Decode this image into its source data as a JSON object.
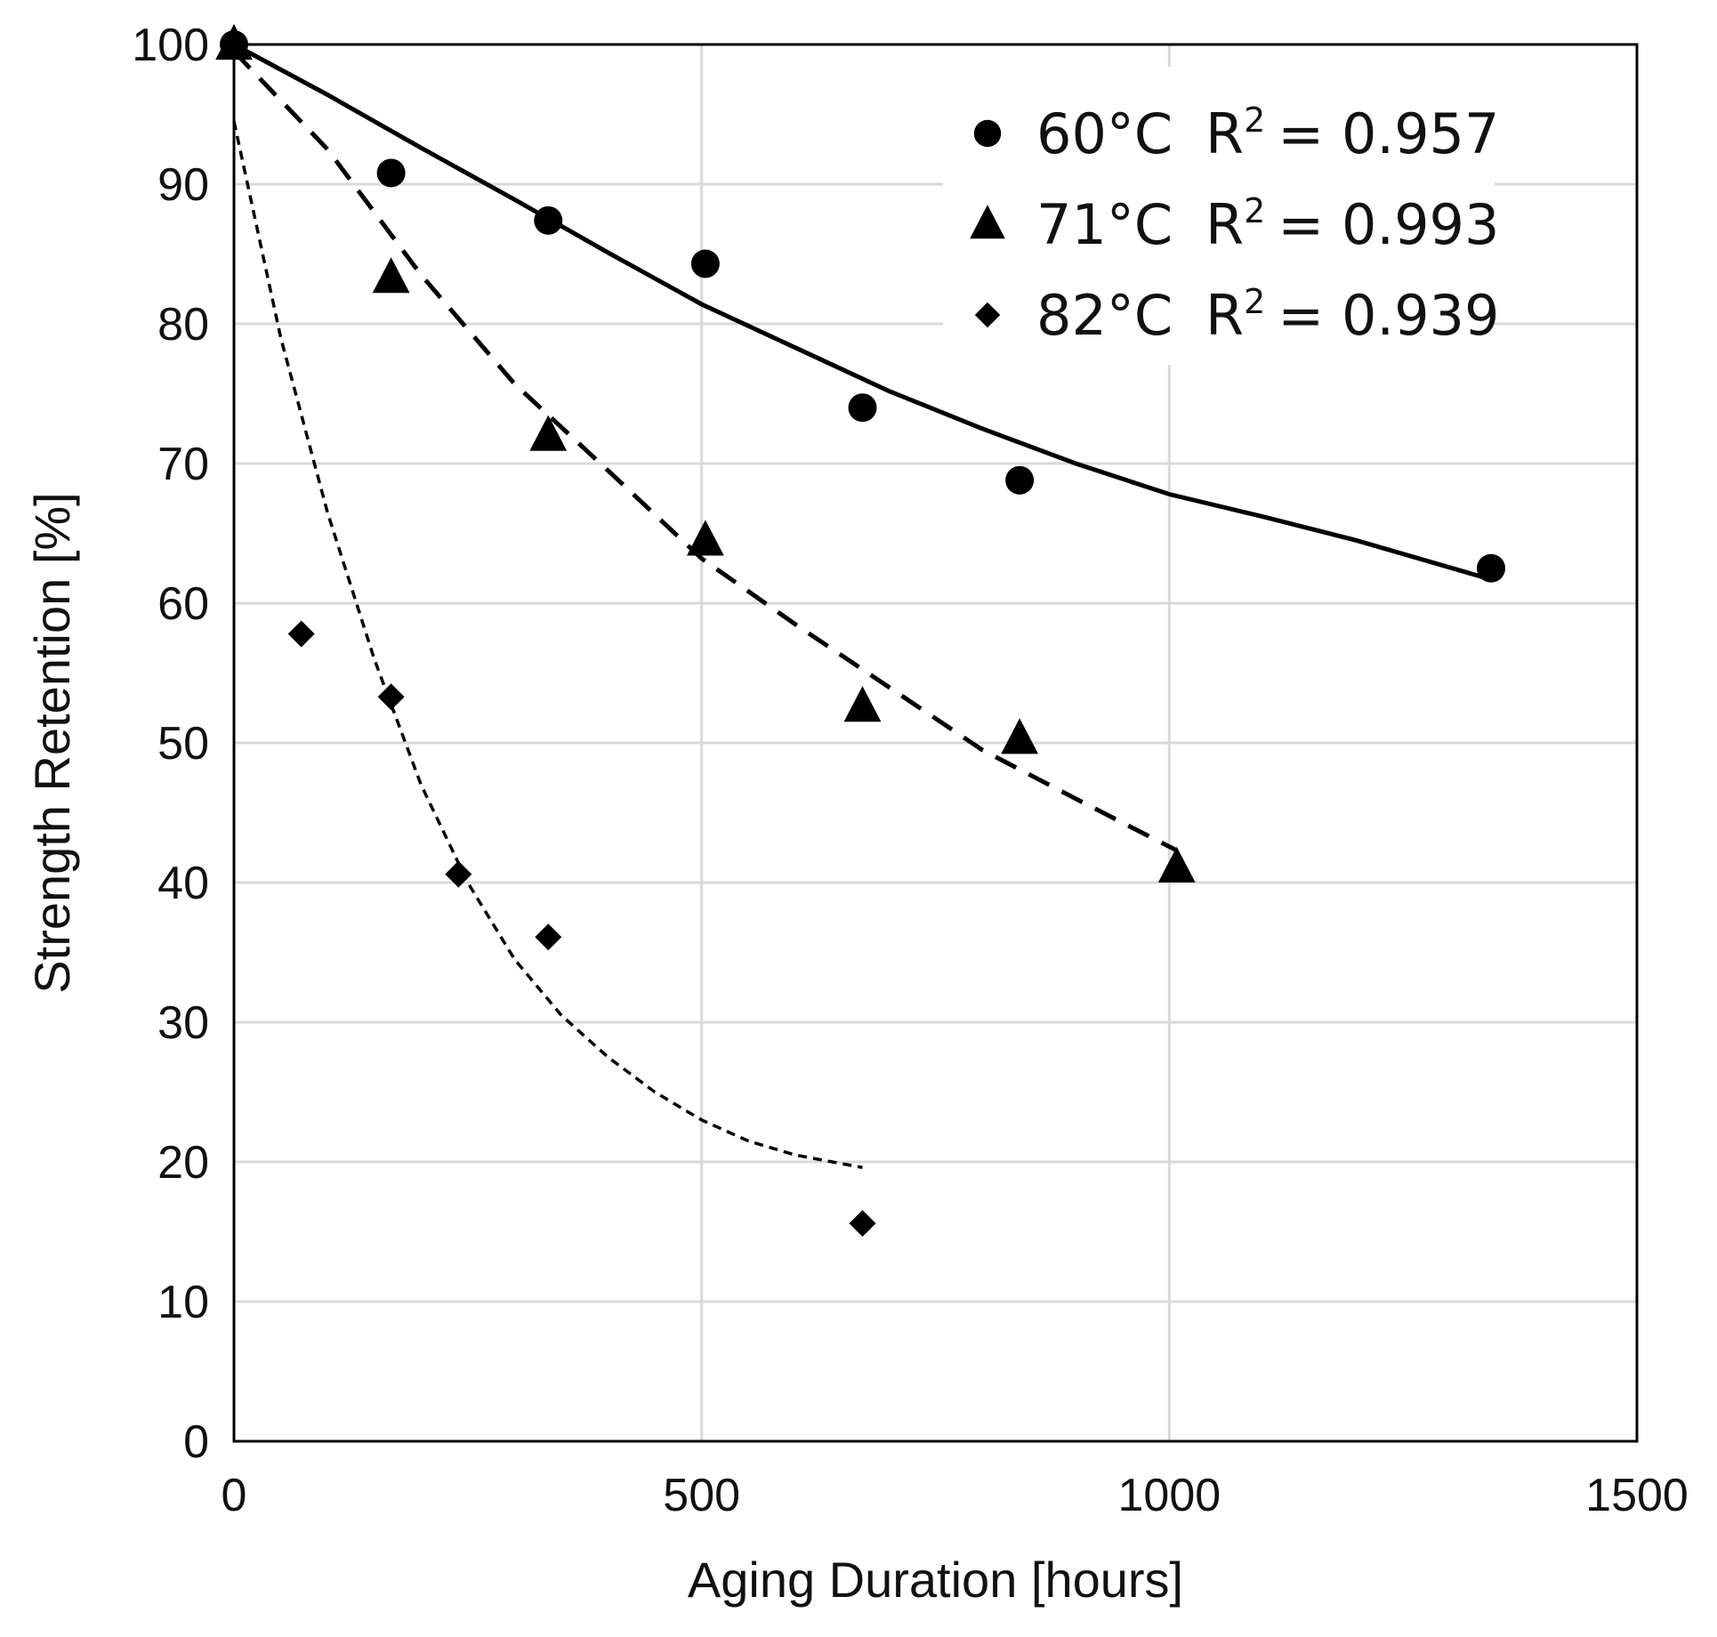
{
  "chart_data": {
    "type": "scatter",
    "xlabel": "Aging Duration [hours]",
    "ylabel": "Strength Retention [%]",
    "xlim": [
      0,
      1500
    ],
    "ylim": [
      0,
      100
    ],
    "x_ticks": [
      0,
      500,
      1000,
      1500
    ],
    "y_ticks": [
      0,
      10,
      20,
      30,
      40,
      50,
      60,
      70,
      80,
      90,
      100
    ],
    "grid": true,
    "legend_position": "top-right",
    "series": [
      {
        "name": "60°C",
        "r2_label": "R",
        "r2_sup": "2",
        "r2_value": "= 0.957",
        "marker": "circle",
        "trend_style": "solid",
        "points": [
          [
            0,
            100
          ],
          [
            168,
            90.8
          ],
          [
            336,
            87.4
          ],
          [
            504,
            84.3
          ],
          [
            672,
            74.0
          ],
          [
            840,
            68.8
          ],
          [
            1344,
            62.5
          ]
        ],
        "trend": [
          [
            0,
            100
          ],
          [
            100,
            96.4
          ],
          [
            200,
            92.6
          ],
          [
            300,
            88.9
          ],
          [
            400,
            85.1
          ],
          [
            500,
            81.4
          ],
          [
            600,
            78.3
          ],
          [
            700,
            75.2
          ],
          [
            800,
            72.5
          ],
          [
            900,
            70.0
          ],
          [
            1000,
            67.8
          ],
          [
            1100,
            66.2
          ],
          [
            1200,
            64.5
          ],
          [
            1344,
            61.7
          ]
        ]
      },
      {
        "name": "71°C",
        "r2_label": "R",
        "r2_sup": "2",
        "r2_value": "= 0.993",
        "marker": "triangle",
        "trend_style": "dashed",
        "points": [
          [
            0,
            100
          ],
          [
            168,
            83.3
          ],
          [
            336,
            72.0
          ],
          [
            504,
            64.5
          ],
          [
            672,
            52.6
          ],
          [
            840,
            50.3
          ],
          [
            1008,
            41.1
          ]
        ],
        "trend": [
          [
            0,
            99.5
          ],
          [
            100,
            92.5
          ],
          [
            200,
            83.5
          ],
          [
            300,
            75.7
          ],
          [
            400,
            69.5
          ],
          [
            500,
            63.2
          ],
          [
            600,
            58.5
          ],
          [
            700,
            54.0
          ],
          [
            800,
            49.5
          ],
          [
            900,
            46.0
          ],
          [
            1008,
            42.3
          ]
        ]
      },
      {
        "name": "82°C",
        "r2_label": "R",
        "r2_sup": "2",
        "r2_value": "= 0.939",
        "marker": "diamond",
        "trend_style": "dotted",
        "points": [
          [
            72,
            57.8
          ],
          [
            168,
            53.3
          ],
          [
            240,
            40.6
          ],
          [
            336,
            36.1
          ],
          [
            672,
            15.6
          ]
        ],
        "trend": [
          [
            0,
            94.5
          ],
          [
            50,
            79.0
          ],
          [
            100,
            66.5
          ],
          [
            150,
            56.0
          ],
          [
            200,
            47.0
          ],
          [
            250,
            40.0
          ],
          [
            300,
            34.5
          ],
          [
            350,
            30.5
          ],
          [
            400,
            27.5
          ],
          [
            450,
            25.0
          ],
          [
            500,
            23.0
          ],
          [
            550,
            21.5
          ],
          [
            600,
            20.5
          ],
          [
            672,
            19.6
          ]
        ]
      }
    ]
  }
}
